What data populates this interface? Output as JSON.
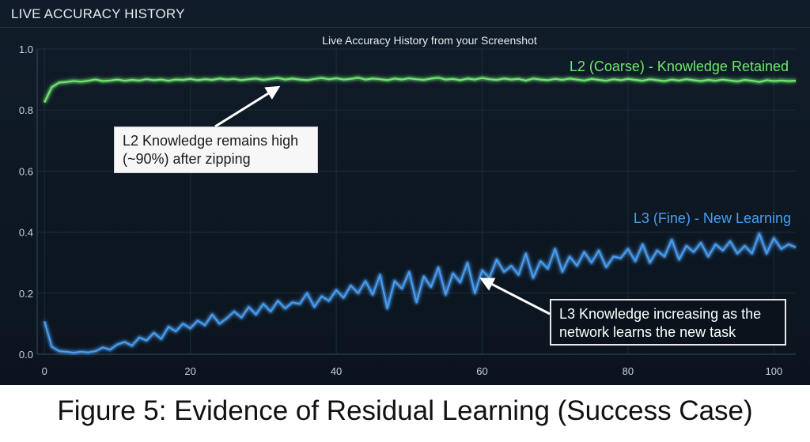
{
  "panel": {
    "title": "LIVE ACCURACY HISTORY"
  },
  "caption": "Figure 5: Evidence of Residual Learning (Success Case)",
  "colors": {
    "l2": "#6fe86f",
    "l3": "#4a9df0",
    "background": "#0d1722",
    "grid": "#1e2c3b"
  },
  "chart_data": {
    "type": "line",
    "title": "Live Accuracy History from your Screenshot",
    "xlabel": "",
    "ylabel": "",
    "xlim": [
      -1,
      103
    ],
    "ylim": [
      0,
      1.0
    ],
    "xticks": [
      0,
      20,
      40,
      60,
      80,
      100
    ],
    "yticks": [
      0.0,
      0.2,
      0.4,
      0.6,
      0.8,
      1.0
    ],
    "grid": true,
    "x": [
      0,
      1,
      2,
      3,
      4,
      5,
      6,
      7,
      8,
      9,
      10,
      11,
      12,
      13,
      14,
      15,
      16,
      17,
      18,
      19,
      20,
      21,
      22,
      23,
      24,
      25,
      26,
      27,
      28,
      29,
      30,
      31,
      32,
      33,
      34,
      35,
      36,
      37,
      38,
      39,
      40,
      41,
      42,
      43,
      44,
      45,
      46,
      47,
      48,
      49,
      50,
      51,
      52,
      53,
      54,
      55,
      56,
      57,
      58,
      59,
      60,
      61,
      62,
      63,
      64,
      65,
      66,
      67,
      68,
      69,
      70,
      71,
      72,
      73,
      74,
      75,
      76,
      77,
      78,
      79,
      80,
      81,
      82,
      83,
      84,
      85,
      86,
      87,
      88,
      89,
      90,
      91,
      92,
      93,
      94,
      95,
      96,
      97,
      98,
      99,
      100,
      101,
      102,
      103
    ],
    "series": [
      {
        "name": "L2 (Coarse) - Knowledge Retained",
        "color": "#6fe86f",
        "values": [
          0.825,
          0.875,
          0.89,
          0.892,
          0.895,
          0.893,
          0.896,
          0.9,
          0.895,
          0.897,
          0.9,
          0.896,
          0.899,
          0.897,
          0.901,
          0.898,
          0.9,
          0.896,
          0.9,
          0.899,
          0.902,
          0.898,
          0.901,
          0.899,
          0.903,
          0.9,
          0.902,
          0.898,
          0.901,
          0.903,
          0.899,
          0.902,
          0.905,
          0.9,
          0.903,
          0.9,
          0.898,
          0.902,
          0.905,
          0.901,
          0.904,
          0.9,
          0.902,
          0.906,
          0.9,
          0.903,
          0.901,
          0.898,
          0.903,
          0.9,
          0.904,
          0.901,
          0.899,
          0.903,
          0.906,
          0.9,
          0.902,
          0.898,
          0.903,
          0.9,
          0.905,
          0.901,
          0.899,
          0.903,
          0.9,
          0.902,
          0.897,
          0.903,
          0.9,
          0.898,
          0.902,
          0.899,
          0.903,
          0.9,
          0.897,
          0.902,
          0.899,
          0.896,
          0.901,
          0.898,
          0.902,
          0.899,
          0.896,
          0.901,
          0.898,
          0.895,
          0.9,
          0.897,
          0.901,
          0.898,
          0.895,
          0.899,
          0.896,
          0.9,
          0.897,
          0.894,
          0.899,
          0.896,
          0.892,
          0.898,
          0.895,
          0.897,
          0.895,
          0.896
        ]
      },
      {
        "name": "L3 (Fine) - New Learning",
        "color": "#4a9df0",
        "values": [
          0.108,
          0.025,
          0.01,
          0.008,
          0.005,
          0.008,
          0.006,
          0.01,
          0.022,
          0.015,
          0.032,
          0.04,
          0.028,
          0.055,
          0.045,
          0.07,
          0.05,
          0.09,
          0.075,
          0.1,
          0.085,
          0.11,
          0.095,
          0.13,
          0.1,
          0.118,
          0.14,
          0.12,
          0.155,
          0.13,
          0.165,
          0.14,
          0.175,
          0.15,
          0.17,
          0.165,
          0.2,
          0.155,
          0.19,
          0.175,
          0.21,
          0.185,
          0.225,
          0.2,
          0.24,
          0.195,
          0.26,
          0.15,
          0.24,
          0.215,
          0.27,
          0.17,
          0.255,
          0.22,
          0.285,
          0.195,
          0.265,
          0.235,
          0.3,
          0.2,
          0.275,
          0.25,
          0.31,
          0.27,
          0.29,
          0.26,
          0.33,
          0.25,
          0.305,
          0.28,
          0.345,
          0.27,
          0.32,
          0.29,
          0.335,
          0.3,
          0.34,
          0.285,
          0.32,
          0.315,
          0.345,
          0.305,
          0.36,
          0.3,
          0.34,
          0.32,
          0.375,
          0.31,
          0.355,
          0.335,
          0.365,
          0.32,
          0.36,
          0.34,
          0.37,
          0.33,
          0.355,
          0.33,
          0.395,
          0.33,
          0.38,
          0.345,
          0.36,
          0.35
        ]
      }
    ],
    "annotations": [
      {
        "lines": [
          "L2 Knowledge remains high",
          "(~90%) after zipping"
        ],
        "target": {
          "x": 32,
          "y": 0.9
        }
      },
      {
        "lines": [
          "L3 Knowledge increasing as the",
          "network learns the new task"
        ],
        "target": {
          "x": 60,
          "y": 0.22
        }
      }
    ]
  }
}
